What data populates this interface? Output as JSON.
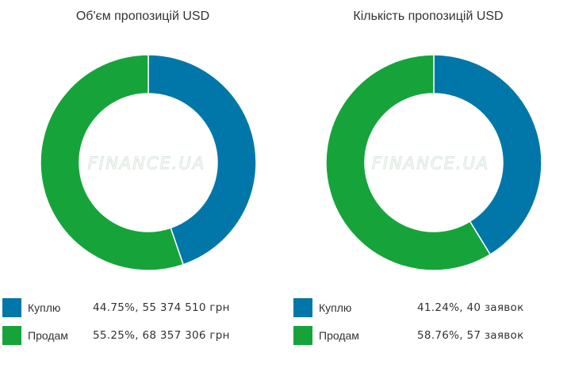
{
  "colors": {
    "buy": "#0077a8",
    "sell": "#16a43a"
  },
  "watermark": "FINANCE.UA",
  "chart_data": [
    {
      "type": "pie",
      "variant": "donut",
      "title": "Об'єм пропозицій USD",
      "series": [
        {
          "name": "Куплю",
          "value": 44.75,
          "detail": "44.75%, 55 374 510 грн"
        },
        {
          "name": "Продам",
          "value": 55.25,
          "detail": "55.25%, 68 357 306 грн"
        }
      ],
      "legend": "bottom"
    },
    {
      "type": "pie",
      "variant": "donut",
      "title": "Кількість пропозицій USD",
      "series": [
        {
          "name": "Куплю",
          "value": 41.24,
          "detail": "41.24%, 40 заявок"
        },
        {
          "name": "Продам",
          "value": 58.76,
          "detail": "58.76%, 57 заявок"
        }
      ],
      "legend": "bottom"
    }
  ]
}
